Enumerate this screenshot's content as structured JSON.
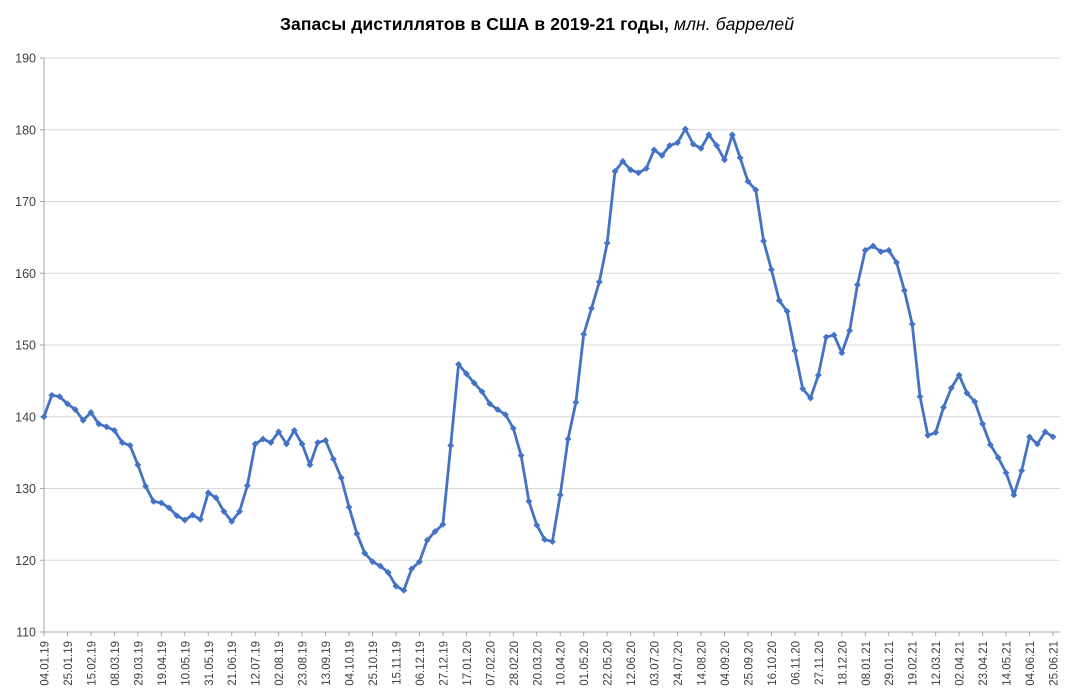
{
  "title": {
    "full": "Запасы дистиллятов в США в 2019-21 годы, млн. баррелей",
    "bold_part": "Запасы дистиллятов в США в 2019-21 годы,",
    "italic_part": " млн. баррелей"
  },
  "chart_data": {
    "type": "line",
    "title": "Запасы дистиллятов в США в 2019-21 годы, млн. баррелей",
    "xlabel": "",
    "ylabel": "",
    "ylim": [
      110,
      190
    ],
    "y_tick_step": 10,
    "y_tick_labels": [
      "110",
      "120",
      "130",
      "140",
      "150",
      "160",
      "170",
      "180",
      "190"
    ],
    "x_tick_every": 3,
    "grid": "horizontal",
    "legend_position": "none",
    "marker": "diamond",
    "line_color": "#4472C4",
    "grid_color": "#d9d9d9",
    "axis_color": "#a6a6a6",
    "tick_label_color": "#404040",
    "x": [
      "04.01.19",
      "11.01.19",
      "18.01.19",
      "25.01.19",
      "01.02.19",
      "08.02.19",
      "15.02.19",
      "22.02.19",
      "01.03.19",
      "08.03.19",
      "15.03.19",
      "22.03.19",
      "29.03.19",
      "05.04.19",
      "12.04.19",
      "19.04.19",
      "26.04.19",
      "03.05.19",
      "10.05.19",
      "17.05.19",
      "24.05.19",
      "31.05.19",
      "07.06.19",
      "14.06.19",
      "21.06.19",
      "28.06.19",
      "05.07.19",
      "12.07.19",
      "19.07.19",
      "26.07.19",
      "02.08.19",
      "09.08.19",
      "16.08.19",
      "23.08.19",
      "30.08.19",
      "06.09.19",
      "13.09.19",
      "20.09.19",
      "27.09.19",
      "04.10.19",
      "11.10.19",
      "18.10.19",
      "25.10.19",
      "01.11.19",
      "08.11.19",
      "15.11.19",
      "22.11.19",
      "29.11.19",
      "06.12.19",
      "13.12.19",
      "20.12.19",
      "27.12.19",
      "03.01.20",
      "10.01.20",
      "17.01.20",
      "24.01.20",
      "31.01.20",
      "07.02.20",
      "14.02.20",
      "21.02.20",
      "28.02.20",
      "06.03.20",
      "13.03.20",
      "20.03.20",
      "27.03.20",
      "03.04.20",
      "10.04.20",
      "17.04.20",
      "24.04.20",
      "01.05.20",
      "08.05.20",
      "15.05.20",
      "22.05.20",
      "29.05.20",
      "05.06.20",
      "12.06.20",
      "19.06.20",
      "26.06.20",
      "03.07.20",
      "10.07.20",
      "17.07.20",
      "24.07.20",
      "31.07.20",
      "07.08.20",
      "14.08.20",
      "21.08.20",
      "28.08.20",
      "04.09.20",
      "11.09.20",
      "18.09.20",
      "25.09.20",
      "02.10.20",
      "09.10.20",
      "16.10.20",
      "23.10.20",
      "30.10.20",
      "06.11.20",
      "13.11.20",
      "20.11.20",
      "27.11.20",
      "04.12.20",
      "11.12.20",
      "18.12.20",
      "25.12.20",
      "01.01.21",
      "08.01.21",
      "15.01.21",
      "22.01.21",
      "29.01.21",
      "05.02.21",
      "12.02.21",
      "19.02.21",
      "26.02.21",
      "05.03.21",
      "12.03.21",
      "19.03.21",
      "26.03.21",
      "02.04.21",
      "09.04.21",
      "16.04.21",
      "23.04.21",
      "30.04.21",
      "07.05.21",
      "14.05.21",
      "21.05.21",
      "28.05.21",
      "04.06.21",
      "11.06.21",
      "18.06.21",
      "25.06.21"
    ],
    "series": [
      {
        "name": "Запасы дистиллятов, млн. баррелей",
        "values": [
          140.0,
          143.0,
          142.8,
          141.8,
          141.0,
          139.5,
          140.6,
          139.0,
          138.6,
          138.1,
          136.4,
          136.0,
          133.3,
          130.3,
          128.2,
          128.0,
          127.3,
          126.2,
          125.6,
          126.3,
          125.7,
          129.4,
          128.7,
          126.8,
          125.4,
          126.8,
          130.4,
          136.2,
          136.9,
          136.4,
          137.9,
          136.2,
          138.1,
          136.2,
          133.3,
          136.4,
          136.7,
          134.1,
          131.5,
          127.4,
          123.7,
          121.0,
          119.8,
          119.2,
          118.3,
          116.4,
          115.8,
          118.8,
          119.8,
          122.8,
          124.0,
          125.0,
          136.0,
          147.3,
          146.0,
          144.7,
          143.5,
          141.8,
          141.0,
          140.3,
          138.4,
          134.6,
          128.2,
          124.9,
          122.9,
          122.6,
          129.1,
          136.9,
          142.0,
          151.5,
          155.1,
          158.8,
          164.2,
          174.2,
          175.6,
          174.4,
          174.0,
          174.6,
          177.2,
          176.4,
          177.8,
          178.2,
          180.1,
          178.0,
          177.4,
          179.3,
          177.8,
          175.8,
          179.3,
          176.1,
          172.8,
          171.6,
          164.5,
          160.5,
          156.2,
          154.7,
          149.2,
          143.9,
          142.6,
          145.8,
          151.1,
          151.4,
          148.9,
          152.0,
          158.4,
          163.2,
          163.8,
          163.0,
          163.2,
          161.5,
          157.6,
          152.9,
          142.8,
          137.4,
          137.8,
          141.3,
          144.0,
          145.8,
          143.3,
          142.1,
          139.0,
          136.1,
          134.3,
          132.2,
          129.1,
          132.5,
          137.2,
          136.2,
          137.9,
          137.2
        ]
      }
    ]
  }
}
